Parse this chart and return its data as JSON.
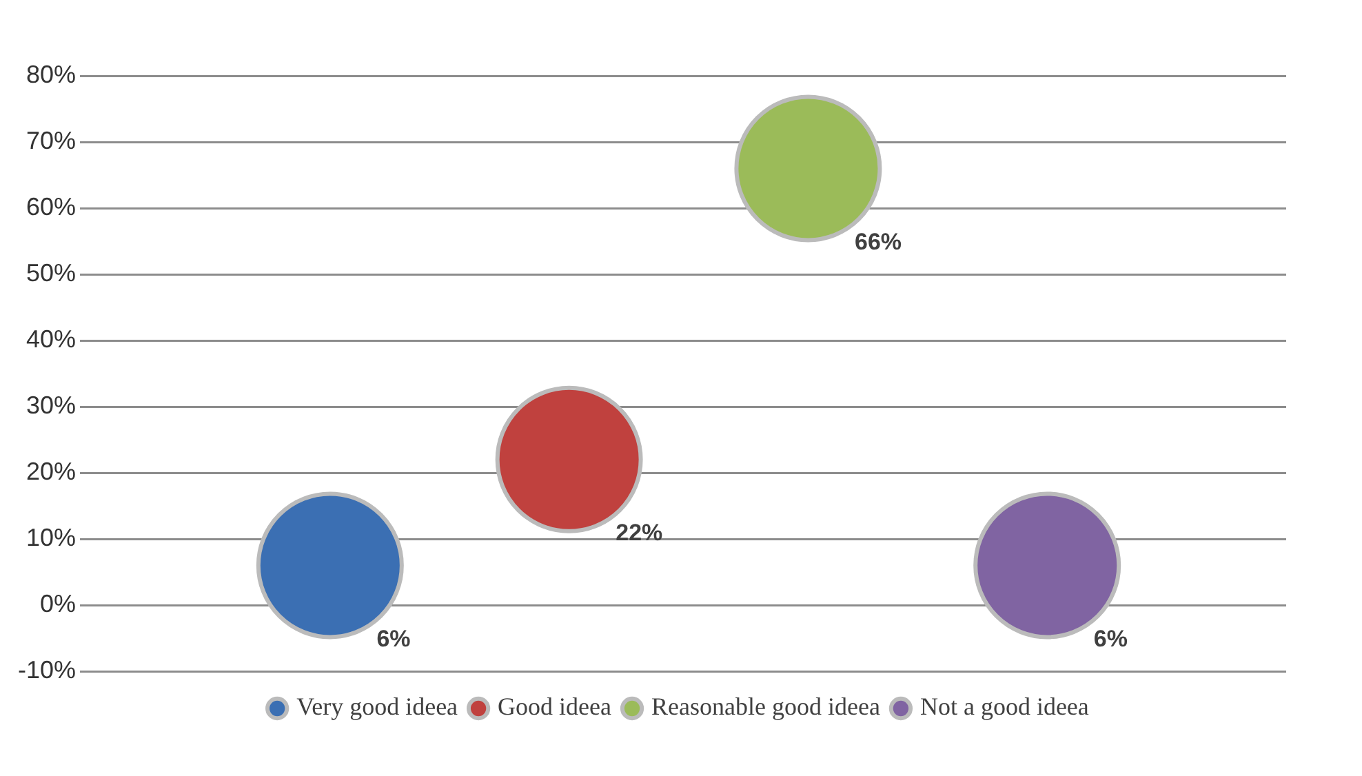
{
  "chart_data": {
    "type": "bubble",
    "categories": [
      null,
      null,
      null,
      null
    ],
    "series": [
      {
        "name": "Very good ideea",
        "color": "#3b6fb3",
        "values": [
          6,
          null,
          null,
          null
        ],
        "sizes": [
          1,
          null,
          null,
          null
        ],
        "value_labels": [
          "6%",
          null,
          null,
          null
        ]
      },
      {
        "name": "Good ideea",
        "color": "#c0413e",
        "values": [
          null,
          22,
          null,
          null
        ],
        "sizes": [
          null,
          1,
          null,
          null
        ],
        "value_labels": [
          null,
          "22%",
          null,
          null
        ]
      },
      {
        "name": "Reasonable good ideea",
        "color": "#9bbb59",
        "values": [
          null,
          null,
          66,
          null
        ],
        "sizes": [
          null,
          null,
          1,
          null
        ],
        "value_labels": [
          null,
          null,
          "66%",
          null
        ]
      },
      {
        "name": "Not a good ideea",
        "color": "#8064a2",
        "values": [
          null,
          null,
          null,
          6
        ],
        "sizes": [
          null,
          null,
          null,
          1
        ],
        "value_labels": [
          null,
          null,
          null,
          "6%"
        ]
      }
    ],
    "ylim": [
      -10,
      80
    ],
    "yticks": [
      {
        "value": -10,
        "label": "-10%"
      },
      {
        "value": 0,
        "label": "0%"
      },
      {
        "value": 10,
        "label": "10%"
      },
      {
        "value": 20,
        "label": "20%"
      },
      {
        "value": 30,
        "label": "30%"
      },
      {
        "value": 40,
        "label": "40%"
      },
      {
        "value": 50,
        "label": "50%"
      },
      {
        "value": 60,
        "label": "60%"
      },
      {
        "value": 70,
        "label": "70%"
      },
      {
        "value": 80,
        "label": "80%"
      }
    ],
    "grid": "y",
    "legend": "bottom",
    "tick_labels": "y"
  }
}
